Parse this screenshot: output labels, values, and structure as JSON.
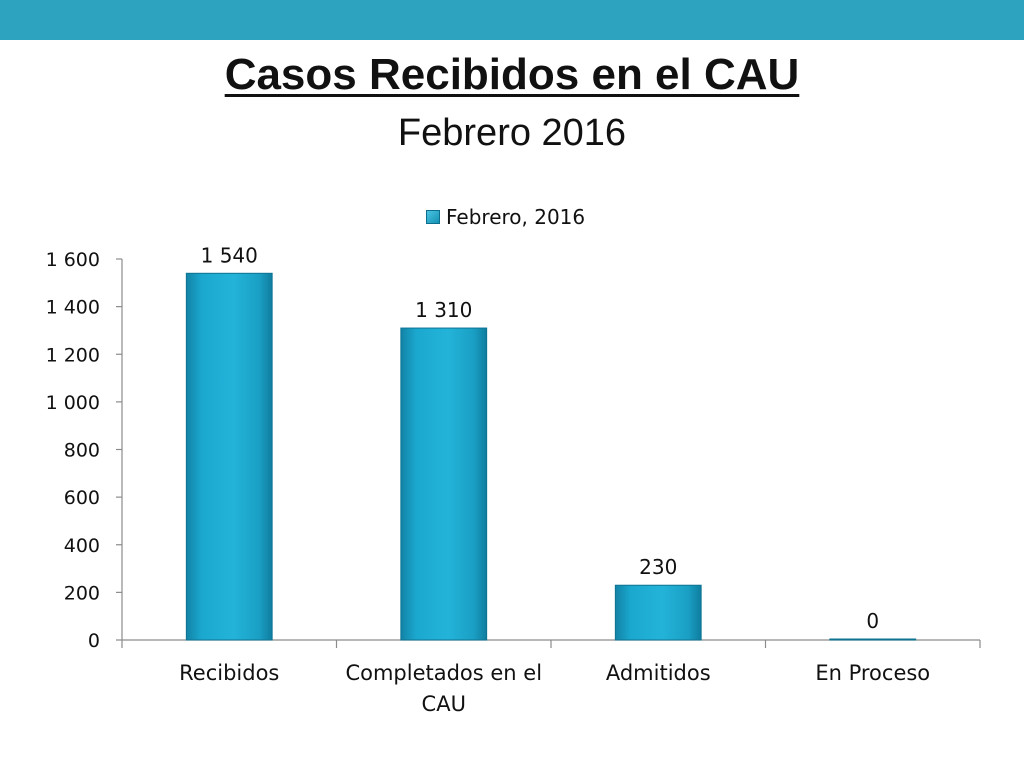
{
  "header": {
    "bar_color": "#2ea3c0"
  },
  "title": "Casos Recibidos en el CAU",
  "subtitle": "Febrero 2016",
  "legend": {
    "label": "Febrero, 2016",
    "placement": "top-center"
  },
  "chart_data": {
    "type": "bar",
    "categories": [
      [
        "Recibidos"
      ],
      [
        "Completados en el",
        "CAU"
      ],
      [
        "Admitidos"
      ],
      [
        "En Proceso"
      ]
    ],
    "series": [
      {
        "name": "Febrero, 2016",
        "values": [
          1540,
          1310,
          230,
          0
        ],
        "color": "#1aa7cc"
      }
    ],
    "data_labels": [
      "1 540",
      "1 310",
      "230",
      "0"
    ],
    "ylim": [
      0,
      1600
    ],
    "yticks": [
      0,
      200,
      400,
      600,
      800,
      1000,
      1200,
      1400,
      1600
    ],
    "ytick_labels": [
      "0",
      "200",
      "400",
      "600",
      "800",
      "1 000",
      "1 200",
      "1 400",
      "1 600"
    ],
    "grid": false
  }
}
